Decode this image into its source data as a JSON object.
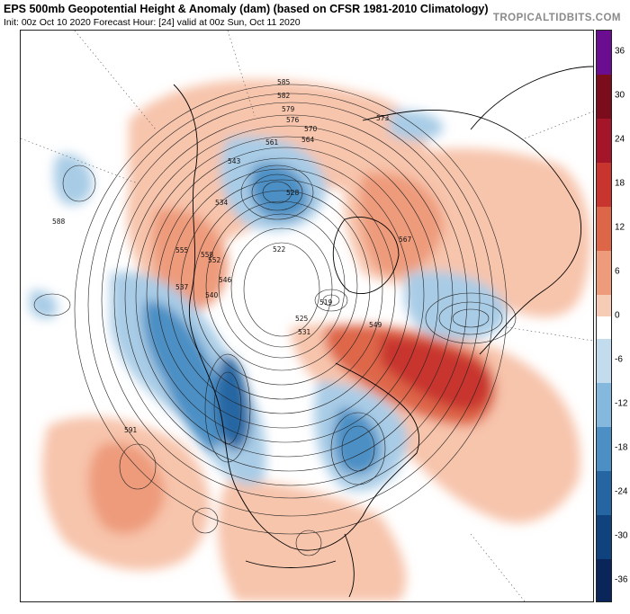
{
  "header": {
    "title": "EPS 500mb Geopotential Height & Anomaly (dam) (based on CFSR 1981-2010 Climatology)",
    "subtitle": "Init: 00z Oct 10 2020   Forecast Hour: [24]   valid at 00z Sun, Oct 11 2020",
    "brand": "TROPICALTIDBITS.COM"
  },
  "colorbar": {
    "labels": [
      "36",
      "30",
      "24",
      "18",
      "12",
      "6",
      "0",
      "-6",
      "-12",
      "-18",
      "-24",
      "-30",
      "-36"
    ],
    "colors": [
      "#6a0d91",
      "#7a0c1c",
      "#a5152a",
      "#c8352e",
      "#de6648",
      "#ee9b7b",
      "#f7ccb6",
      "#ffffff",
      "#c2dbed",
      "#84b8dc",
      "#4b8fc4",
      "#2566a2",
      "#10427e",
      "#0a2559"
    ]
  },
  "map": {
    "contour_labels": [
      "585",
      "582",
      "579",
      "576",
      "573",
      "570",
      "567",
      "564",
      "561",
      "558",
      "555",
      "552",
      "549",
      "546",
      "543",
      "540",
      "537",
      "534",
      "531",
      "528",
      "525",
      "522",
      "519",
      "588",
      "591"
    ]
  },
  "colors": {
    "positive_anomaly": "#e8825f",
    "strong_positive_anomaly": "#c02a2a",
    "negative_anomaly": "#5a9ccd",
    "strong_negative_anomaly": "#1f5f9f",
    "contour": "#222222",
    "land_border": "#000000"
  }
}
